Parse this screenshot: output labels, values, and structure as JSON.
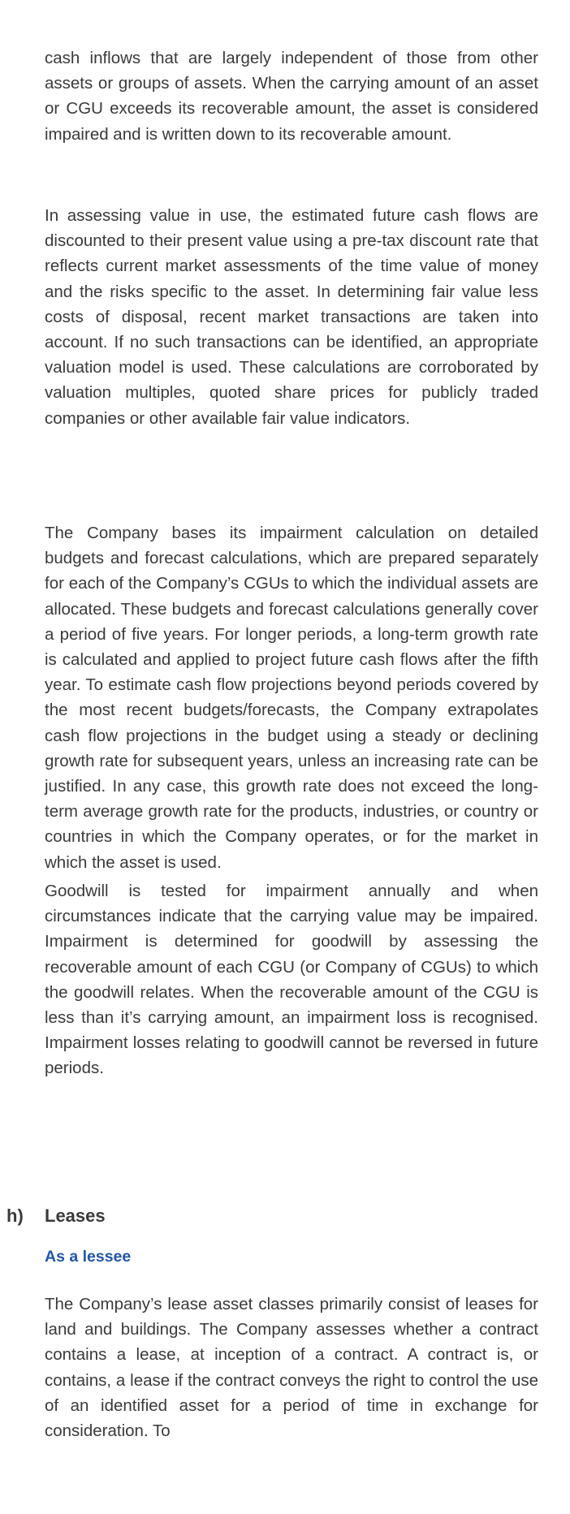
{
  "paragraphs": {
    "p1": "cash inflows that are largely independent of those from other assets or groups of assets. When the carrying amount of an asset or CGU exceeds its recoverable amount, the asset is considered impaired and is written down to its recoverable amount.",
    "p2": "In assessing value in use, the estimated future cash flows are discounted to their present value using a pre-tax discount rate that reflects current market assessments of the time value of money and the risks specific to the asset. In determining fair value less costs of disposal, recent market transactions are taken into account. If no such transactions can be identified, an appropriate valuation model is used. These calculations are corroborated by valuation multiples, quoted share prices for publicly traded companies or other available fair value indicators.",
    "p3": "The Company bases its impairment calculation on detailed budgets and forecast calculations, which are prepared separately for each of the Company’s CGUs to which the individual assets are allocated. These budgets and forecast calculations generally cover a period of five years. For longer periods, a long-term growth rate is calculated and applied to project future cash flows after the fifth year. To estimate cash flow projections beyond periods covered by the most recent budgets/forecasts, the Company extrapolates cash flow projections in the budget using a steady or declining growth rate for subsequent years, unless an increasing rate can be justified. In any case, this growth rate does not exceed the long-term average growth rate for the products, industries, or country or countries in which the Company operates, or for the market in which the asset is used.",
    "p4": "Goodwill is tested for impairment annually and when circumstances indicate that the carrying value may be impaired. Impairment is determined for goodwill by assessing the recoverable amount of each CGU (or Company of CGUs) to which the goodwill relates. When the recoverable amount of the CGU is less than it’s carrying amount, an impairment loss is recognised. Impairment losses relating to goodwill cannot be reversed in future periods.",
    "p5": "The Company’s lease asset classes primarily consist of leases for land and buildings. The Company assesses whether a contract contains a lease, at inception of a contract. A contract is, or contains, a lease if the contract conveys the right to control the use of an identified asset for a period of time in exchange for consideration. To"
  },
  "section": {
    "letter": "h)",
    "title": "Leases",
    "subtitle": "As a lessee"
  },
  "colors": {
    "body_text": "#3a3a3a",
    "subheading": "#1f56a8"
  }
}
